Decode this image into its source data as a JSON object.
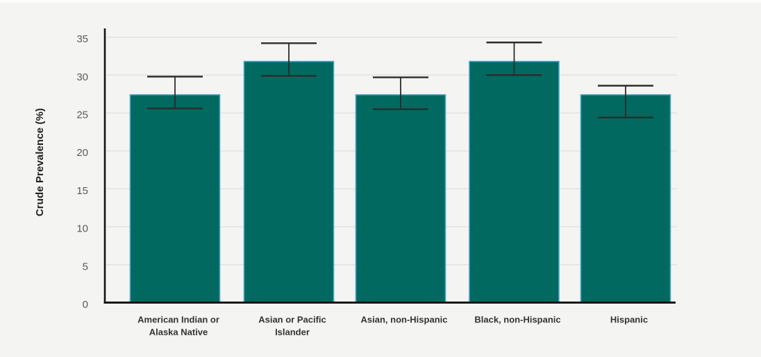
{
  "page": {
    "background_color": "#f4f4f3"
  },
  "chart_data": {
    "type": "bar",
    "title": "",
    "xlabel": "",
    "ylabel": "Crude Prevalence (%)",
    "categories": [
      "American Indian or Alaska Native",
      "Asian or Pacific Islander",
      "Asian, non-Hispanic",
      "Black, non-Hispanic",
      "Hispanic"
    ],
    "category_lines": [
      [
        "American Indian or",
        "Alaska Native"
      ],
      [
        "Asian or Pacific",
        "Islander"
      ],
      [
        "Asian, non-Hispanic"
      ],
      [
        "Black, non-Hispanic"
      ],
      [
        "Hispanic"
      ]
    ],
    "values": [
      27.4,
      31.8,
      27.4,
      31.8,
      27.4
    ],
    "error_low": [
      25.6,
      29.9,
      25.5,
      30.0,
      24.4
    ],
    "error_high": [
      29.8,
      34.2,
      29.7,
      34.3,
      28.6
    ],
    "yticks": [
      0,
      5,
      10,
      15,
      20,
      25,
      30,
      35
    ],
    "ylim": [
      0,
      36.2
    ],
    "grid": true,
    "legend_position": "none",
    "colors": {
      "bar_fill": "#01695f",
      "bar_stroke": "#4aa5c5",
      "axis": "#141414",
      "gridline": "#e2e2e2",
      "tick_label": "#595959",
      "category_label": "#333333",
      "axis_title": "#1f1f1f",
      "error_bar": "#2b2b2b",
      "background": "#f4f4f3"
    }
  }
}
